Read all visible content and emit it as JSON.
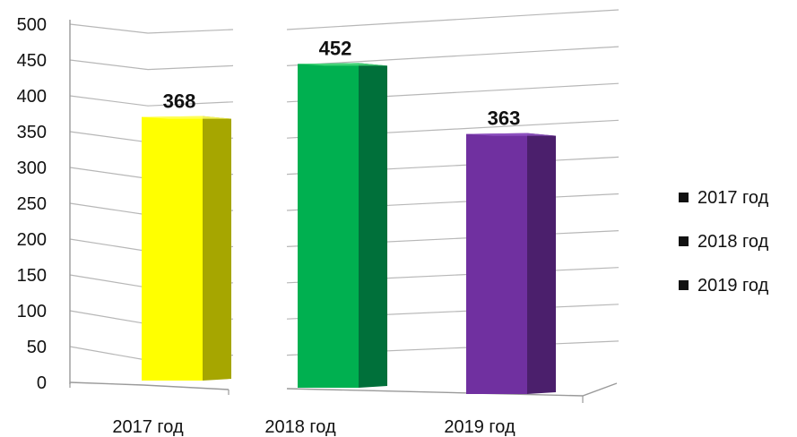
{
  "chart_data": {
    "type": "bar",
    "title": "",
    "xlabel": "",
    "ylabel": "",
    "categories": [
      "2017 год",
      "2018 год",
      "2019 год"
    ],
    "values": [
      368,
      452,
      363
    ],
    "ylim": [
      0,
      500
    ],
    "yticks": [
      0,
      50,
      100,
      150,
      200,
      250,
      300,
      350,
      400,
      450,
      500
    ],
    "grid": true,
    "legend_position": "right",
    "legend": [
      "2017 год",
      "2018 год",
      "2019 год"
    ],
    "colors": [
      "#ffff00",
      "#00b050",
      "#7030a0"
    ],
    "side_colors": [
      "#a6a600",
      "#00703a",
      "#4b1f6c"
    ],
    "top_colors": [
      "#ffff66",
      "#4dd97e",
      "#9256c4"
    ]
  }
}
